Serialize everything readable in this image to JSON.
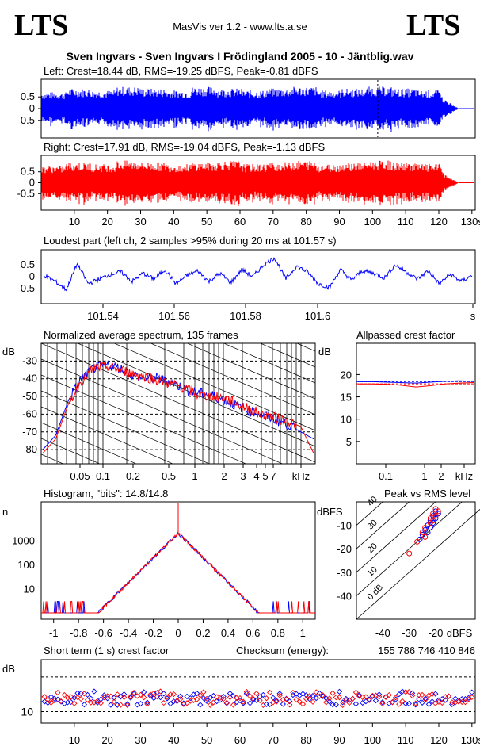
{
  "header": {
    "logo_left": "LTS",
    "logo_right": "LTS",
    "app_info": "MasVis ver 1.2 - www.lts.a.se",
    "track_title": "Sven Ingvars - Sven Ingvars I Frödingland 2005 - 10 - Jäntblig.wav"
  },
  "colors": {
    "left": "#0000ff",
    "right": "#ff0000",
    "grid": "#000000"
  },
  "chart_data": [
    {
      "id": "left_waveform",
      "type": "area",
      "title": "Left: Crest=18.44 dB, RMS=-19.25 dBFS, Peak=-0.81 dBFS",
      "y_ticks": [
        "0.5",
        "0",
        "-0.5"
      ],
      "ylim": [
        -1,
        1
      ],
      "xlim": [
        0,
        131
      ],
      "envelope_end_s": 121,
      "tail_end_s": 126,
      "peak_marker_s": 101.57,
      "series": [
        {
          "values": [
            0.45,
            0.55,
            0.5,
            0.6,
            0.55,
            0.5,
            0.6,
            0.55,
            0.5,
            0.55,
            0.6,
            0.5,
            0.55,
            0.6,
            0.55,
            0.5
          ]
        }
      ]
    },
    {
      "id": "right_waveform",
      "type": "area",
      "title": "Right: Crest=17.91 dB, RMS=-19.04 dBFS, Peak=-1.13 dBFS",
      "y_ticks": [
        "0.5",
        "0",
        "-0.5"
      ],
      "ylim": [
        -1,
        1
      ],
      "xlim": [
        0,
        131
      ],
      "x_ticks": [
        "10",
        "20",
        "30",
        "40",
        "50",
        "60",
        "70",
        "80",
        "90",
        "100",
        "110",
        "120",
        "130s"
      ],
      "envelope_end_s": 121,
      "tail_end_s": 126,
      "series": [
        {
          "values": [
            0.5,
            0.6,
            0.55,
            0.65,
            0.6,
            0.55,
            0.6,
            0.65,
            0.55,
            0.6,
            0.65,
            0.55,
            0.6,
            0.65,
            0.6,
            0.55
          ]
        }
      ]
    },
    {
      "id": "loudest_part",
      "type": "line",
      "title": "Loudest part (left  ch, 2 samples >95% during 20 ms at 101.57 s)",
      "y_ticks": [
        "0.5",
        "0",
        "-0.5"
      ],
      "ylim": [
        -1,
        1
      ],
      "x_ticks": [
        "101.54",
        "101.56",
        "101.58",
        "101.6",
        "s"
      ],
      "xlim": [
        101.525,
        101.6
      ],
      "series": [
        {
          "name": "",
          "values": [
            0.05,
            -0.2,
            -0.55,
            0.55,
            -0.3,
            -0.1,
            0.1,
            0.2,
            -0.2,
            0.15,
            -0.1,
            0.3,
            -0.3,
            0.05,
            0.25,
            -0.2,
            0.15,
            -0.25,
            0.3,
            0.0,
            0.5,
            0.8,
            -0.1,
            0.45,
            0.2,
            -0.3,
            -0.45,
            0.3,
            -0.15,
            0.25,
            0.15,
            -0.05,
            0.5,
            0.2,
            -0.1,
            0.25,
            -0.3,
            0.1,
            -0.2,
            0.05
          ]
        }
      ]
    },
    {
      "id": "avg_spectrum",
      "type": "line",
      "title": "Normalized average spectrum, 135 frames",
      "ylabel": "dB",
      "y_ticks": [
        "-30",
        "-40",
        "-50",
        "-60",
        "-70",
        "-80"
      ],
      "ylim": [
        -88,
        -20
      ],
      "x_ticks": [
        "0.05",
        "0.1",
        "0.2",
        "0.5",
        "1",
        "2",
        "3",
        "4",
        "5",
        "7",
        "kHz"
      ],
      "series": [
        {
          "name": "L",
          "values": [
            -80,
            -72,
            -52,
            -40,
            -34,
            -32,
            -34,
            -38,
            -40,
            -40,
            -42,
            -46,
            -48,
            -49,
            -52,
            -55,
            -58,
            -60,
            -63,
            -66,
            -70,
            -74
          ]
        },
        {
          "name": "R",
          "values": [
            -82,
            -74,
            -54,
            -41,
            -34,
            -33,
            -35,
            -37,
            -39,
            -41,
            -43,
            -45,
            -49,
            -50,
            -51,
            -54,
            -57,
            -60,
            -62,
            -64,
            -67,
            -82
          ]
        }
      ]
    },
    {
      "id": "allpassed_crest",
      "type": "line",
      "title": "Allpassed crest factor",
      "ylabel": "dB",
      "y_ticks": [
        "20",
        "15",
        "10",
        "5"
      ],
      "ylim": [
        0,
        27
      ],
      "x_ticks": [
        "0.1",
        "1",
        "2",
        "kHz"
      ],
      "series": [
        {
          "name": "L",
          "values": [
            18.4,
            18.4,
            18.3,
            18.2,
            18.1,
            18.3,
            18.5,
            18.6,
            18.5
          ]
        },
        {
          "name": "R",
          "values": [
            17.9,
            17.9,
            17.8,
            17.6,
            17.2,
            17.5,
            17.9,
            18.1,
            18.2
          ]
        }
      ]
    },
    {
      "id": "histogram",
      "type": "line",
      "title": "Histogram, \"bits\": 14.8/14.8",
      "ylabel": "n",
      "y_ticks": [
        "1000",
        "100",
        "10"
      ],
      "x_ticks": [
        "-1",
        "-0.8",
        "-0.6",
        "-0.4",
        "-0.2",
        "0",
        "0.2",
        "0.4",
        "0.6",
        "0.8",
        "1"
      ],
      "xlim": [
        -1.1,
        1.1
      ]
    },
    {
      "id": "peak_vs_rms",
      "type": "scatter",
      "title": "Peak vs RMS level",
      "ylabel": "dBFS",
      "xlabel": "dBFS",
      "y_ticks": [
        "-10",
        "-20",
        "-30",
        "-40"
      ],
      "x_ticks": [
        "-40",
        "-30",
        "-20",
        "dBFS"
      ],
      "diag_labels": [
        "40",
        "30",
        "20",
        "10",
        "0 dB"
      ],
      "series": [
        {
          "name": "L",
          "points": [
            [
              -22,
              -8
            ],
            [
              -21,
              -6
            ],
            [
              -20,
              -7
            ],
            [
              -19,
              -5
            ],
            [
              -23,
              -10
            ],
            [
              -24,
              -12
            ],
            [
              -25,
              -14
            ],
            [
              -26,
              -16
            ],
            [
              -21,
              -9
            ],
            [
              -20,
              -4
            ],
            [
              -22,
              -11
            ],
            [
              -23,
              -13
            ]
          ]
        },
        {
          "name": "R",
          "points": [
            [
              -22,
              -7
            ],
            [
              -21,
              -5
            ],
            [
              -20,
              -6
            ],
            [
              -19,
              -4
            ],
            [
              -24,
              -11
            ],
            [
              -25,
              -13
            ],
            [
              -27,
              -17
            ],
            [
              -30,
              -22
            ],
            [
              -21,
              -8
            ],
            [
              -20,
              -3
            ],
            [
              -22,
              -9
            ],
            [
              -24,
              -15
            ]
          ]
        }
      ]
    },
    {
      "id": "short_term_crest",
      "type": "scatter",
      "title": "Short term (1 s) crest factor",
      "ylabel": "dB",
      "y_ticks": [
        "10"
      ],
      "ylim": [
        8,
        19
      ],
      "x_ticks": [
        "10",
        "20",
        "30",
        "40",
        "50",
        "60",
        "70",
        "80",
        "90",
        "100",
        "110",
        "120",
        "130s"
      ],
      "checksum_label": "Checksum (energy):",
      "checksum_value": "155 786 746 410 846"
    }
  ]
}
